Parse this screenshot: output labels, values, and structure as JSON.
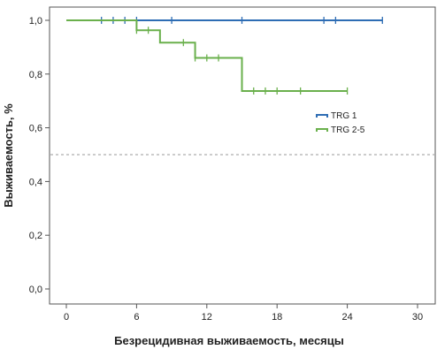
{
  "chart_data": {
    "type": "line",
    "step": true,
    "title": "",
    "xlabel": "Безрецидивная выживаемость, месяцы",
    "ylabel": "Выживаемость, %",
    "xlim": [
      0,
      30
    ],
    "ylim": [
      0,
      1
    ],
    "x_ticks": [
      "0",
      "6",
      "12",
      "18",
      "24",
      "30"
    ],
    "y_ticks": [
      "0,0",
      "0,2",
      "0,4",
      "0,6",
      "0,8",
      "1,0"
    ],
    "grid": false,
    "legend_position": "right",
    "reference_line": {
      "y": 0.5,
      "style": "dashed",
      "color": "#9a9a9a"
    },
    "series": [
      {
        "name": "TRG 1",
        "color": "#2e6db4",
        "steps": [
          [
            0,
            1.0
          ],
          [
            27,
            1.0
          ]
        ],
        "censored": [
          3,
          4,
          5,
          6,
          9,
          15,
          22,
          23,
          27
        ]
      },
      {
        "name": "TRG 2-5",
        "color": "#6ab04c",
        "steps": [
          [
            0,
            1.0
          ],
          [
            6,
            0.963
          ],
          [
            8,
            0.917
          ],
          [
            11,
            0.86
          ],
          [
            15,
            0.737
          ],
          [
            24,
            0.737
          ]
        ],
        "censored": [
          6,
          7,
          10,
          11,
          12,
          13,
          16,
          17,
          18,
          20,
          24
        ]
      }
    ]
  }
}
